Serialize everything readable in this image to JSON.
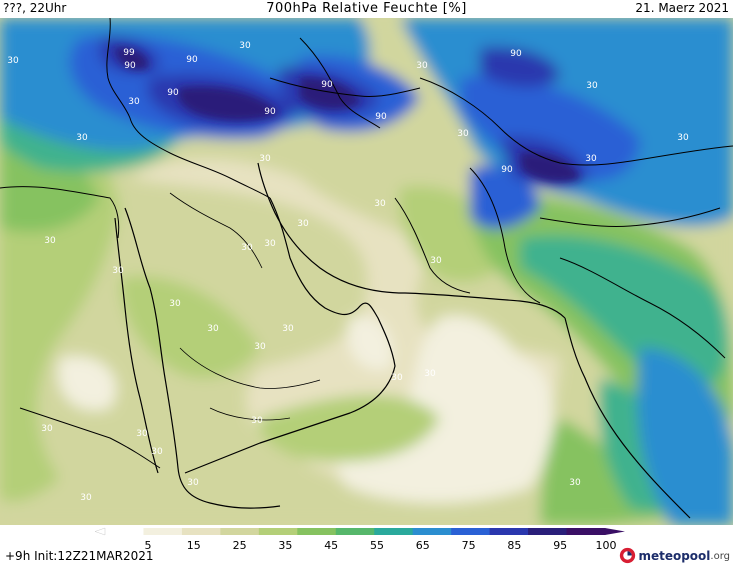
{
  "header": {
    "runtime": "???, 22Uhr",
    "title": "700hPa Relative Feuchte [%]",
    "date": "21. Maerz 2021"
  },
  "footer": {
    "init": "+9h  Init:12Z21MAR2021",
    "brand_name": "meteopool",
    "brand_tld": ".org"
  },
  "legend": {
    "ticks": [
      "5",
      "15",
      "25",
      "35",
      "45",
      "55",
      "65",
      "75",
      "85",
      "95",
      "100"
    ],
    "colors": [
      "#ffffff",
      "#f3f0df",
      "#e7e2c1",
      "#d2d69e",
      "#b4cf78",
      "#86c260",
      "#56b76b",
      "#2aa99c",
      "#2b8ed0",
      "#2a61d5",
      "#2a37ae",
      "#2a1f7a",
      "#3a0f65"
    ]
  },
  "colors": {
    "dry": "#f3f0df",
    "light_dry": "#e7e2c1",
    "tan": "#d2d69e",
    "light_green": "#b4cf78",
    "green": "#86c260",
    "teal": "#3fb28e",
    "light_blue": "#2b8ed0",
    "blue": "#2a61d5",
    "dark_blue": "#2a37ae",
    "navy": "#2a1f7a",
    "coast": "#000000",
    "label_text": "#ffffff"
  },
  "contour_labels": [
    {
      "text": "30"
    },
    {
      "text": "30"
    },
    {
      "text": "30"
    },
    {
      "text": "30"
    },
    {
      "text": "30"
    },
    {
      "text": "30"
    },
    {
      "text": "30"
    },
    {
      "text": "30"
    },
    {
      "text": "30"
    },
    {
      "text": "30"
    },
    {
      "text": "30"
    },
    {
      "text": "30"
    },
    {
      "text": "30"
    },
    {
      "text": "30"
    },
    {
      "text": "30"
    },
    {
      "text": "30"
    },
    {
      "text": "30"
    },
    {
      "text": "30"
    },
    {
      "text": "30"
    },
    {
      "text": "30"
    },
    {
      "text": "30"
    },
    {
      "text": "30"
    },
    {
      "text": "30"
    },
    {
      "text": "30"
    },
    {
      "text": "30"
    },
    {
      "text": "30"
    },
    {
      "text": "30"
    },
    {
      "text": "30"
    },
    {
      "text": "30"
    },
    {
      "text": "30"
    },
    {
      "text": "90"
    },
    {
      "text": "90"
    },
    {
      "text": "90"
    },
    {
      "text": "90"
    },
    {
      "text": "90"
    },
    {
      "text": "90"
    },
    {
      "text": "90"
    },
    {
      "text": "90"
    },
    {
      "text": "99"
    }
  ]
}
